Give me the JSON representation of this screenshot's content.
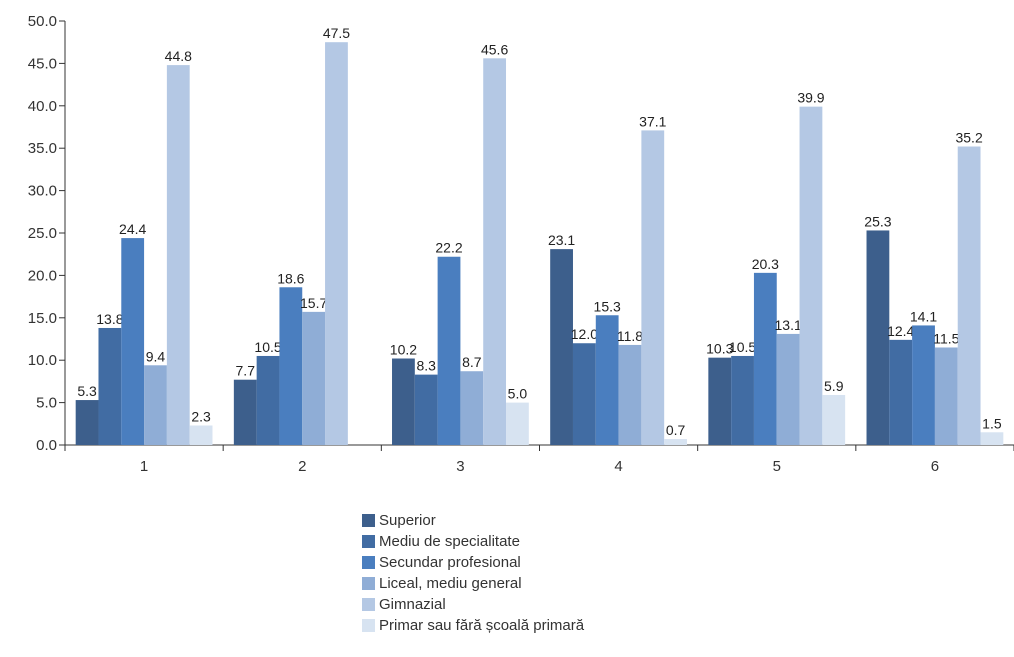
{
  "chart_data": {
    "type": "bar",
    "categories": [
      "1",
      "2",
      "3",
      "4",
      "5",
      "6"
    ],
    "series": [
      {
        "name": "Superior",
        "color": "#3d5f8c",
        "values": [
          5.3,
          7.7,
          10.2,
          23.1,
          10.3,
          25.3
        ]
      },
      {
        "name": "Mediu de specialitate",
        "color": "#416ca3",
        "values": [
          13.8,
          10.5,
          8.3,
          12.0,
          10.5,
          12.4
        ]
      },
      {
        "name": "Secundar profesional",
        "color": "#4a7ebf",
        "values": [
          24.4,
          18.6,
          22.2,
          15.3,
          20.3,
          14.1
        ]
      },
      {
        "name": "Liceal, mediu general",
        "color": "#8fadd6",
        "values": [
          9.4,
          15.7,
          8.7,
          11.8,
          13.1,
          11.5
        ]
      },
      {
        "name": "Gimnazial",
        "color": "#b4c8e4",
        "values": [
          44.8,
          47.5,
          45.6,
          37.1,
          39.9,
          35.2
        ]
      },
      {
        "name": "Primar sau fără școală primară",
        "color": "#d7e3f1",
        "values": [
          2.3,
          null,
          5.0,
          0.7,
          5.9,
          1.5
        ]
      }
    ],
    "y_ticks": [
      "0.0",
      "5.0",
      "10.0",
      "15.0",
      "20.0",
      "25.0",
      "30.0",
      "35.0",
      "40.0",
      "45.0",
      "50.0"
    ],
    "ylim": [
      0,
      50
    ],
    "grid": false,
    "legend_position": "bottom"
  }
}
